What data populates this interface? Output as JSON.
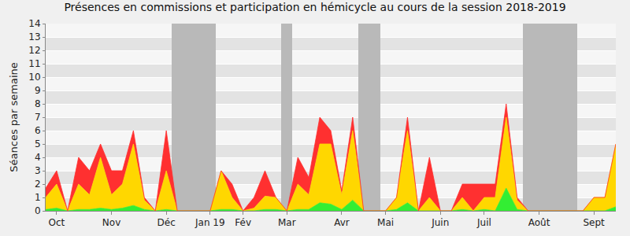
{
  "chart_data": {
    "type": "area",
    "stacked": true,
    "title": "Présences en commissions et participation en hémicycle au cours de la session 2018-2019",
    "y_label": "Séances par semaine",
    "categories": [
      null,
      "Oct",
      null,
      null,
      null,
      null,
      "Nov",
      null,
      null,
      null,
      null,
      "Déc",
      null,
      null,
      null,
      "Jan 19",
      null,
      null,
      "Fév",
      null,
      null,
      null,
      "Mar",
      null,
      null,
      null,
      null,
      "Avr",
      null,
      null,
      null,
      "Mai",
      null,
      null,
      null,
      null,
      "Juin",
      null,
      null,
      null,
      "Juil",
      null,
      null,
      null,
      null,
      "Août",
      null,
      null,
      null,
      null,
      "Sept",
      null,
      null
    ],
    "series": [
      {
        "type": "bar",
        "color": "#b9b9b9",
        "values": [
          null,
          null,
          null,
          null,
          null,
          null,
          null,
          null,
          null,
          null,
          null,
          null,
          14,
          14,
          14,
          14,
          null,
          null,
          null,
          null,
          null,
          null,
          14,
          null,
          null,
          null,
          null,
          null,
          null,
          14,
          14,
          null,
          null,
          null,
          null,
          null,
          null,
          null,
          null,
          null,
          null,
          null,
          null,
          null,
          14,
          14,
          14,
          14,
          14,
          null,
          null,
          null,
          null
        ]
      },
      {
        "color": "#33ee33",
        "values": [
          0.1,
          0.2,
          0,
          0.1,
          0.1,
          0.2,
          0.1,
          0.2,
          0.4,
          0.1,
          0,
          0.1,
          0,
          0,
          0,
          0,
          0.1,
          0.1,
          0,
          0,
          0.1,
          0.1,
          0,
          0.1,
          0.1,
          0.6,
          0.5,
          0.1,
          0.8,
          0,
          0,
          0,
          0.1,
          0.6,
          0,
          0,
          0,
          0,
          0.1,
          0,
          0.1,
          0,
          1.7,
          0.1,
          0,
          0,
          0,
          0,
          0,
          0,
          0,
          0,
          0.3
        ]
      },
      {
        "color": "#ffd700",
        "values": [
          0.9,
          1.8,
          0,
          1.9,
          1.1,
          3.8,
          1.1,
          1.8,
          4.6,
          0.7,
          0,
          2.9,
          0,
          0,
          0,
          0,
          2.9,
          0.9,
          0,
          0.2,
          1.0,
          0.9,
          0,
          1.9,
          1.1,
          4.4,
          4.5,
          1.1,
          5.2,
          0,
          0,
          0,
          0.9,
          5.4,
          0,
          1.0,
          0,
          0,
          0.9,
          0,
          0.9,
          1.0,
          5.3,
          0.7,
          0,
          0,
          0,
          0,
          0,
          0,
          1.0,
          1.0,
          4.7
        ]
      },
      {
        "color": "#ff3030",
        "values": [
          0.7,
          1.0,
          0,
          2.0,
          1.8,
          1.0,
          1.8,
          1.0,
          1.0,
          0.2,
          0,
          3.0,
          0,
          0,
          0,
          0,
          0,
          1.0,
          0,
          0.8,
          1.9,
          0,
          0,
          2.0,
          1.3,
          2.0,
          1.0,
          0.3,
          1.0,
          0,
          0,
          0,
          0,
          1.0,
          0,
          3.0,
          0,
          0,
          1.0,
          2.0,
          1.0,
          1.0,
          1.0,
          0.2,
          0,
          0,
          0,
          0,
          0,
          0,
          0,
          0,
          0
        ]
      }
    ],
    "ylim": [
      0,
      14
    ],
    "yticks": [
      0,
      1,
      2,
      3,
      4,
      5,
      6,
      7,
      8,
      9,
      10,
      11,
      12,
      13,
      14
    ],
    "grid": true
  }
}
